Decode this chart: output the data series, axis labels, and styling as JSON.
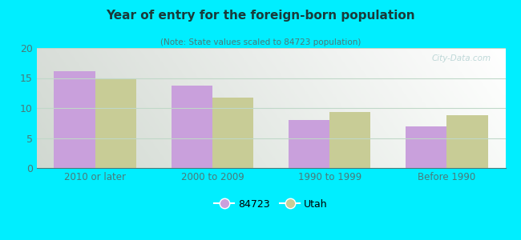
{
  "title": "Year of entry for the foreign-born population",
  "subtitle": "(Note: State values scaled to 84723 population)",
  "categories": [
    "2010 or later",
    "2000 to 2009",
    "1990 to 1999",
    "Before 1990"
  ],
  "values_84723": [
    16.1,
    13.8,
    8.0,
    7.0
  ],
  "values_utah": [
    15.0,
    11.8,
    9.4,
    8.8
  ],
  "color_84723": "#c9a0dc",
  "color_utah": "#c8cc96",
  "background_outer": "#00eeff",
  "background_inner_tl": "#d8ead8",
  "background_inner_br": "#eaf5f0",
  "ylim": [
    0,
    20
  ],
  "yticks": [
    0,
    5,
    10,
    15,
    20
  ],
  "bar_width": 0.35,
  "legend_label_84723": "84723",
  "legend_label_utah": "Utah",
  "watermark": "City-Data.com",
  "title_color": "#1a3a3a",
  "subtitle_color": "#4a7a7a",
  "tick_color": "#4a7a7a",
  "grid_color": "#c0d8c8"
}
